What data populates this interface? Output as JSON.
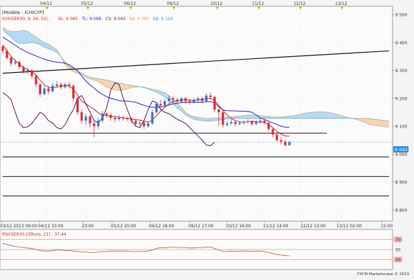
{
  "chart_data": {
    "type": "candlestick",
    "instrument_label": "[Modèle : ICHICYP]",
    "indicator_legend": [
      {
        "text": "ICH(GER30, 9, 26, 52) :",
        "color": "#cc2222"
      },
      {
        "text": "SL: 9 065",
        "color": "#cc2222"
      },
      {
        "text": "TL: 9 096",
        "color": "#2222cc"
      },
      {
        "text": "CS: 9 043",
        "color": "#551155"
      },
      {
        "text": "SA: 9 080",
        "color": "#e0a060"
      },
      {
        "text": "SB: 9 124",
        "color": "#3399cc"
      }
    ],
    "top_dates": [
      "04/12",
      "05/12",
      "06/12",
      "09/12",
      "10/12",
      "11/12",
      "12/12",
      "13/12"
    ],
    "y_ticks": [
      "9 500",
      "9 400",
      "9 300",
      "9 200",
      "9 100",
      "9 000",
      "8 900",
      "8 800"
    ],
    "ylim": [
      8760,
      9530
    ],
    "price_label": "9 043",
    "last_price": 9043,
    "x_tick_labels": [
      "03/12 2013 09:00",
      "04/12 10:00",
      "23:00",
      "05/12 20:00",
      "06/12 18:00",
      "09/12 17:00",
      "10/12 16:00",
      "11/12 14:00",
      "12/12 13:00",
      "13/12 02:00",
      "15:00"
    ],
    "candles": [
      [
        9385,
        9370,
        9390,
        9360
      ],
      [
        9370,
        9345,
        9375,
        9340
      ],
      [
        9345,
        9325,
        9350,
        9315
      ],
      [
        9325,
        9330,
        9340,
        9318
      ],
      [
        9330,
        9312,
        9335,
        9305
      ],
      [
        9312,
        9295,
        9318,
        9288
      ],
      [
        9295,
        9300,
        9310,
        9285
      ],
      [
        9300,
        9280,
        9305,
        9270
      ],
      [
        9280,
        9250,
        9285,
        9240
      ],
      [
        9250,
        9215,
        9255,
        9205
      ],
      [
        9215,
        9235,
        9245,
        9210
      ],
      [
        9235,
        9225,
        9245,
        9215
      ],
      [
        9225,
        9245,
        9255,
        9220
      ],
      [
        9245,
        9250,
        9262,
        9238
      ],
      [
        9250,
        9240,
        9258,
        9232
      ],
      [
        9240,
        9250,
        9256,
        9235
      ],
      [
        9250,
        9245,
        9258,
        9236
      ],
      [
        9245,
        9200,
        9250,
        9190
      ],
      [
        9200,
        9150,
        9205,
        9140
      ],
      [
        9150,
        9120,
        9160,
        9110
      ],
      [
        9120,
        9135,
        9145,
        9105
      ],
      [
        9135,
        9110,
        9140,
        9095
      ],
      [
        9110,
        9100,
        9120,
        9060
      ],
      [
        9100,
        9120,
        9130,
        9090
      ],
      [
        9120,
        9145,
        9155,
        9112
      ],
      [
        9145,
        9140,
        9152,
        9130
      ],
      [
        9140,
        9130,
        9148,
        9120
      ],
      [
        9130,
        9125,
        9138,
        9115
      ],
      [
        9125,
        9130,
        9140,
        9118
      ],
      [
        9130,
        9128,
        9138,
        9120
      ],
      [
        9128,
        9126,
        9134,
        9118
      ],
      [
        9126,
        9120,
        9132,
        9110
      ],
      [
        9120,
        9108,
        9124,
        9098
      ],
      [
        9108,
        9112,
        9120,
        9100
      ],
      [
        9112,
        9100,
        9116,
        9090
      ],
      [
        9100,
        9110,
        9118,
        9095
      ],
      [
        9110,
        9150,
        9160,
        9105
      ],
      [
        9150,
        9180,
        9188,
        9145
      ],
      [
        9180,
        9175,
        9195,
        9165
      ],
      [
        9175,
        9190,
        9198,
        9170
      ],
      [
        9190,
        9200,
        9210,
        9182
      ],
      [
        9200,
        9195,
        9208,
        9185
      ],
      [
        9195,
        9188,
        9202,
        9180
      ],
      [
        9188,
        9200,
        9206,
        9182
      ],
      [
        9200,
        9190,
        9205,
        9180
      ],
      [
        9190,
        9185,
        9198,
        9178
      ],
      [
        9185,
        9195,
        9202,
        9180
      ],
      [
        9195,
        9200,
        9206,
        9188
      ],
      [
        9200,
        9190,
        9205,
        9182
      ],
      [
        9190,
        9210,
        9218,
        9185
      ],
      [
        9210,
        9205,
        9220,
        9196
      ],
      [
        9205,
        9160,
        9210,
        9150
      ],
      [
        9160,
        9150,
        9165,
        9100
      ],
      [
        9150,
        9105,
        9155,
        9095
      ],
      [
        9105,
        9110,
        9120,
        9098
      ],
      [
        9110,
        9115,
        9125,
        9105
      ],
      [
        9115,
        9108,
        9120,
        9100
      ],
      [
        9108,
        9112,
        9118,
        9102
      ],
      [
        9112,
        9115,
        9122,
        9106
      ],
      [
        9115,
        9118,
        9126,
        9110
      ],
      [
        9118,
        9108,
        9122,
        9100
      ],
      [
        9108,
        9116,
        9122,
        9102
      ],
      [
        9116,
        9120,
        9130,
        9110
      ],
      [
        9120,
        9112,
        9126,
        9105
      ],
      [
        9112,
        9090,
        9118,
        9080
      ],
      [
        9090,
        9070,
        9095,
        9060
      ],
      [
        9070,
        9050,
        9075,
        9045
      ],
      [
        9050,
        9045,
        9060,
        9035
      ],
      [
        9045,
        9032,
        9050,
        9028
      ],
      [
        9032,
        9043,
        9048,
        9030
      ]
    ],
    "tenkan": [
      9392,
      9370,
      9350,
      9335,
      9322,
      9310,
      9302,
      9295,
      9284,
      9265,
      9248,
      9240,
      9238,
      9240,
      9244,
      9246,
      9245,
      9232,
      9212,
      9190,
      9180,
      9170,
      9160,
      9148,
      9140,
      9138,
      9136,
      9134,
      9132,
      9130,
      9128,
      9126,
      9124,
      9122,
      9118,
      9114,
      9122,
      9138,
      9154,
      9168,
      9180,
      9188,
      9192,
      9194,
      9195,
      9194,
      9192,
      9194,
      9196,
      9198,
      9200,
      9192,
      9175,
      9158,
      9140,
      9128,
      9120,
      9116,
      9114,
      9116,
      9117,
      9116,
      9115,
      9114,
      9106,
      9095,
      9082,
      9072,
      9065,
      9065
    ],
    "kijun": [
      9420,
      9410,
      9400,
      9390,
      9380,
      9372,
      9364,
      9358,
      9352,
      9346,
      9340,
      9336,
      9332,
      9330,
      9328,
      9326,
      9320,
      9310,
      9300,
      9280,
      9262,
      9248,
      9236,
      9224,
      9214,
      9206,
      9200,
      9196,
      9192,
      9190,
      9190,
      9188,
      9186,
      9180,
      9175,
      9170,
      9168,
      9168,
      9170,
      9172,
      9176,
      9180,
      9182,
      9185,
      9186,
      9186,
      9186,
      9186,
      9186,
      9188,
      9188,
      9184,
      9170,
      9158,
      9156,
      9155,
      9155,
      9154,
      9154,
      9153,
      9150,
      9140,
      9130,
      9124,
      9118,
      9112,
      9106,
      9100,
      9097,
      9096
    ],
    "chikou": [
      9220,
      9210,
      9195,
      9150,
      9110,
      9095,
      9098,
      9110,
      9130,
      9150,
      9140,
      9120,
      9112,
      9095,
      9090,
      9105,
      9135,
      9160,
      9200,
      9210,
      9180,
      9150,
      9120,
      9112,
      9130,
      9165,
      9230,
      9255,
      9250,
      9200,
      9160,
      9120,
      9100,
      9095,
      9120,
      9160,
      9190,
      9185,
      9160,
      9150,
      9145,
      9135,
      9125,
      9118,
      9110,
      9095,
      9080,
      9065,
      9050,
      9033,
      9030,
      9043
    ],
    "senkou_a": [
      9455,
      9445,
      9440,
      9440,
      9440,
      9445,
      9440,
      9430,
      9420,
      9410,
      9400,
      9395,
      9385,
      9375,
      9350,
      9320,
      9305,
      9295,
      9290,
      9285,
      9275,
      9270,
      9265,
      9260,
      9250,
      9240,
      9235,
      9230,
      9228,
      9230,
      9234,
      9238,
      9240,
      9242,
      9240,
      9236,
      9232,
      9230,
      9226,
      9220,
      9210,
      9195,
      9180,
      9168,
      9150,
      9140,
      9135,
      9132,
      9130,
      9128,
      9128,
      9130,
      9130,
      9130,
      9132,
      9134,
      9135,
      9136,
      9138,
      9140,
      9140,
      9140,
      9138,
      9136,
      9135,
      9134,
      9133,
      9134,
      9135,
      9136,
      9138,
      9140,
      9145,
      9148,
      9150,
      9150,
      9152,
      9152,
      9150,
      9148,
      9145,
      9140,
      9136,
      9132,
      9128,
      9124,
      9120,
      9114,
      9108,
      9104,
      9102,
      9100,
      9098,
      9096
    ],
    "senkou_b": [
      9445,
      9432,
      9420,
      9405,
      9398,
      9396,
      9398,
      9400,
      9398,
      9392,
      9384,
      9378,
      9372,
      9365,
      9350,
      9330,
      9315,
      9305,
      9296,
      9290,
      9280,
      9276,
      9272,
      9270,
      9268,
      9265,
      9262,
      9258,
      9255,
      9252,
      9248,
      9246,
      9244,
      9242,
      9238,
      9234,
      9228,
      9222,
      9214,
      9205,
      9195,
      9180,
      9165,
      9155,
      9140,
      9132,
      9125,
      9122,
      9120,
      9118,
      9118,
      9120,
      9122,
      9124,
      9126,
      9128,
      9128,
      9128,
      9128,
      9128,
      9128,
      9128,
      9128,
      9128,
      9128,
      9128,
      9128,
      9128,
      9128,
      9128,
      9128,
      9128,
      9128,
      9128,
      9128,
      9128,
      9128,
      9128,
      9128,
      9128,
      9128,
      9128,
      9128,
      9128,
      9128,
      9128,
      9128,
      9128,
      9128,
      9126,
      9124,
      9122,
      9120,
      9118
    ],
    "trendline_diagonal": {
      "from": [
        0,
        9290
      ],
      "to": [
        93,
        9370
      ]
    },
    "horizontal_lines": [
      {
        "value": 9075,
        "from": 4,
        "to": 78
      },
      {
        "value": 8990,
        "from": 0,
        "to": 93
      },
      {
        "value": 8920,
        "from": 0,
        "to": 93
      },
      {
        "value": 8850,
        "from": 0,
        "to": 93
      }
    ],
    "osc_label": "RSI(GER30.Clôture, 21) : 37,44",
    "osc_ticks": [
      "70",
      "50",
      "30"
    ],
    "osc_ylim": [
      10,
      90
    ],
    "osc_values": [
      62,
      60,
      58,
      56,
      55,
      54,
      53,
      52,
      50,
      48,
      47,
      47,
      48,
      49,
      49,
      48,
      48,
      47,
      46,
      45,
      45,
      44,
      44,
      45,
      46,
      46,
      47,
      47,
      47,
      47,
      47,
      46,
      46,
      46,
      46,
      47,
      49,
      52,
      54,
      53,
      54,
      55,
      54,
      54,
      54,
      53,
      53,
      54,
      54,
      55,
      55,
      52,
      49,
      46,
      46,
      47,
      46,
      47,
      47,
      47,
      46,
      47,
      47,
      46,
      44,
      42,
      40,
      39,
      38,
      37.44
    ],
    "footer": "FXCM Marketscope © 2013"
  }
}
